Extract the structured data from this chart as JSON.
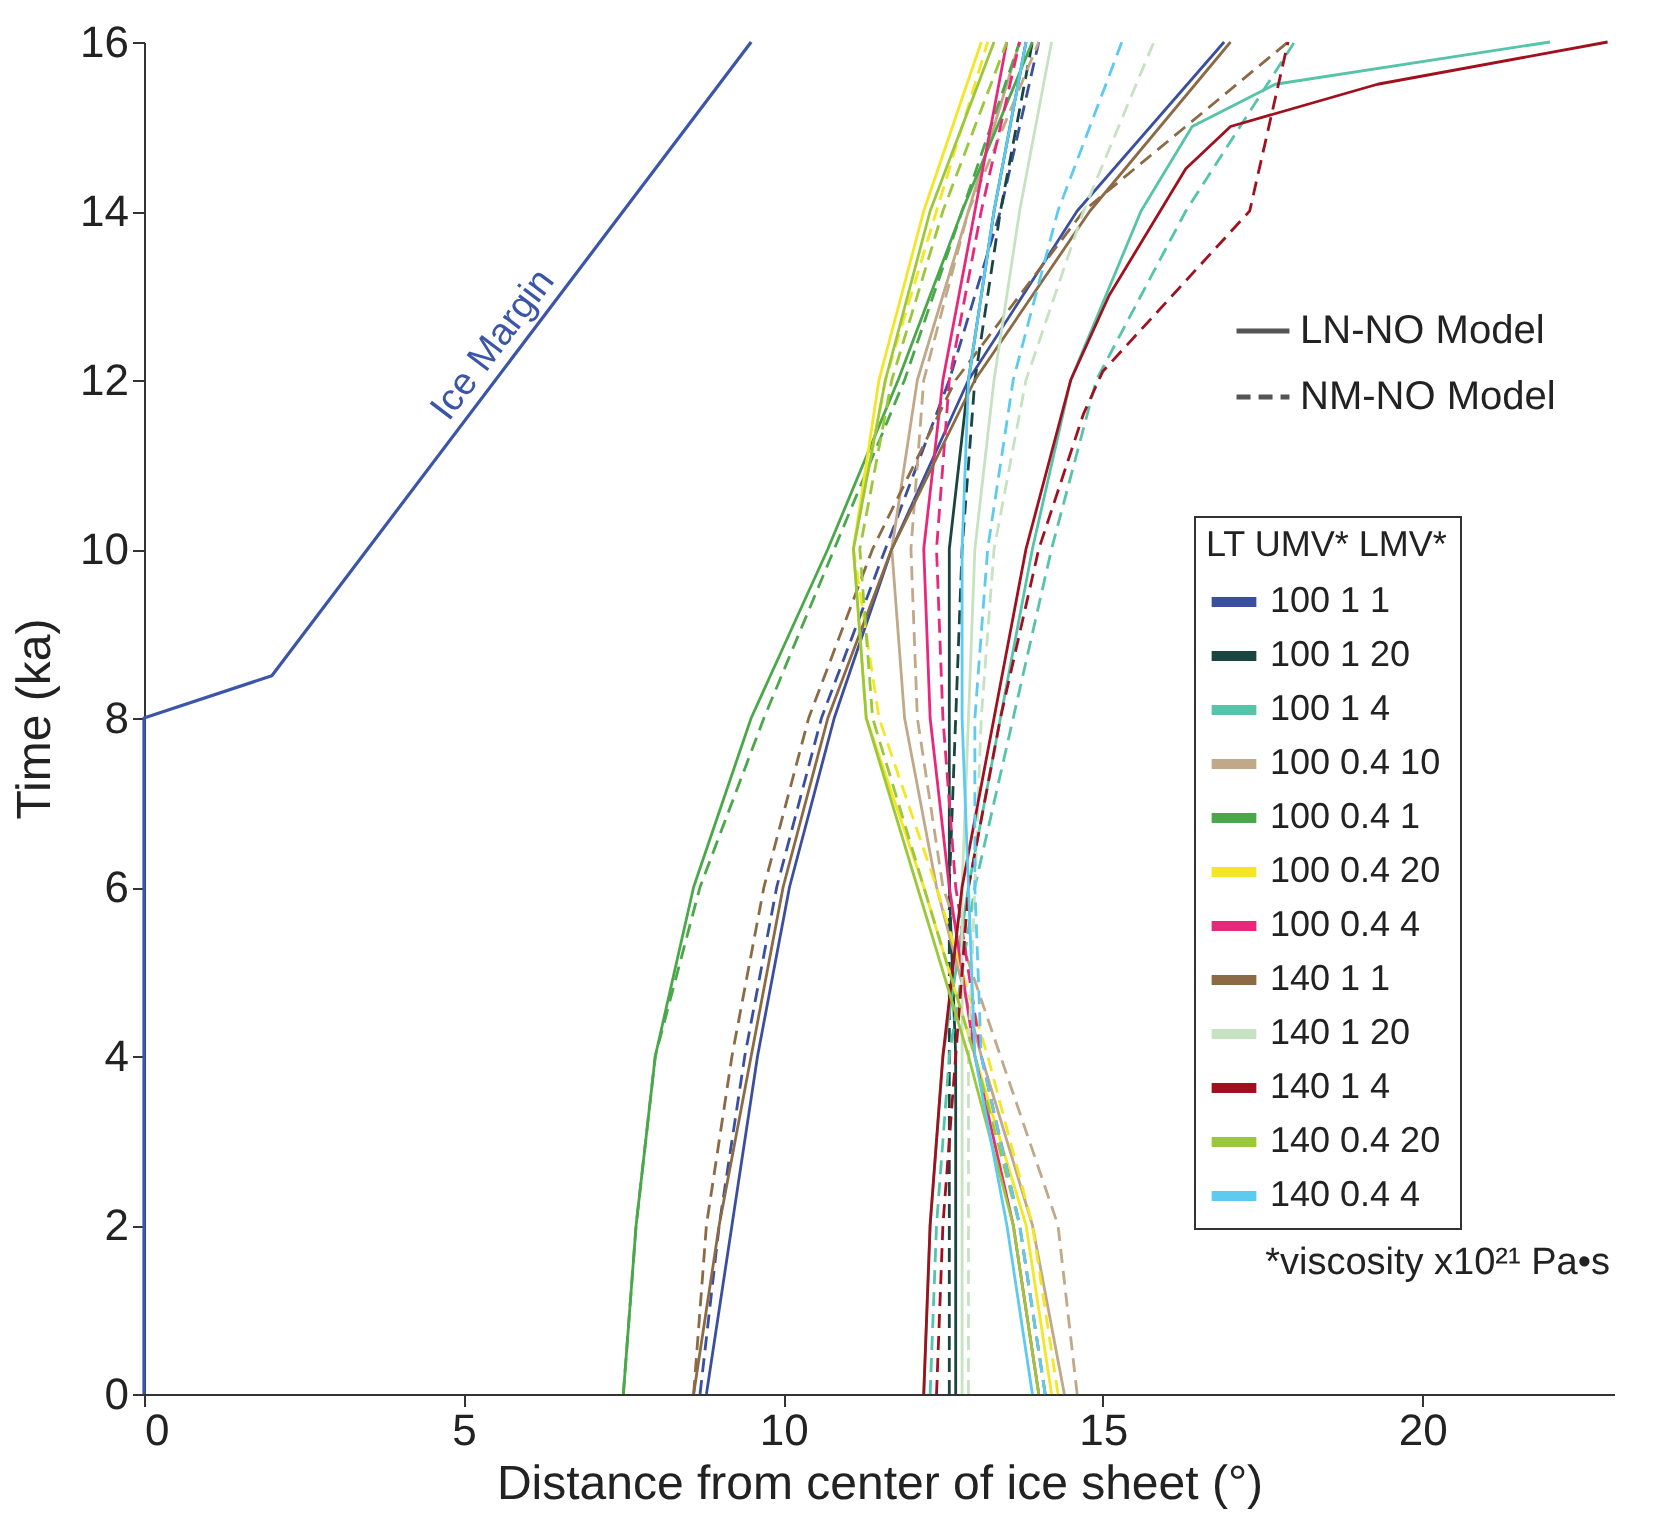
{
  "chart_data": {
    "type": "line",
    "xlabel": "Distance from center of ice sheet (°)",
    "ylabel": "Time (ka)",
    "legend_title": "LT UMV* LMV*",
    "xlim": [
      0,
      23
    ],
    "ylim": [
      0,
      16
    ],
    "xticks": [
      0,
      5,
      10,
      15,
      20
    ],
    "yticks": [
      0,
      2,
      4,
      6,
      8,
      10,
      12,
      14,
      16
    ],
    "grid": false,
    "legend": "right",
    "marker": "none",
    "annotations": [
      "LN-NO Model",
      "NM-NO Model",
      "*viscosity x10²¹ Pa•s"
    ],
    "series": [
      {
        "name": "Ice Margin",
        "color": "#3b55a8",
        "line_style": "solid",
        "x": [
          0,
          0,
          2,
          9.5
        ],
        "values": [
          0,
          8,
          8.5,
          16
        ]
      },
      {
        "name": "100 1 1",
        "color": "#3b4fa0",
        "line_style": "solid",
        "x": [
          8.8,
          9.2,
          9.6,
          10.1,
          10.8,
          11.7,
          12.9,
          14.6,
          16.9
        ],
        "values": [
          0,
          2,
          4,
          6,
          8,
          10,
          12,
          14,
          16
        ]
      },
      {
        "color": "#3b4fa0",
        "line_style": "dashed",
        "x": [
          8.7,
          9.0,
          9.4,
          9.9,
          10.6,
          11.6,
          12.6,
          13.4,
          14.0
        ],
        "values": [
          0,
          2,
          4,
          6,
          8,
          10,
          12,
          14,
          16
        ]
      },
      {
        "name": "100 1 20",
        "color": "#1a4540",
        "line_style": "solid",
        "x": [
          12.7,
          12.7,
          12.7,
          12.6,
          12.6,
          12.6,
          12.9,
          13.3,
          13.8
        ],
        "values": [
          0,
          2,
          4,
          6,
          8,
          10,
          12,
          14,
          16
        ]
      },
      {
        "color": "#1a4540",
        "line_style": "dashed",
        "x": [
          12.6,
          12.6,
          12.6,
          12.6,
          12.7,
          12.8,
          13.0,
          13.4,
          13.9
        ],
        "values": [
          0,
          2,
          4,
          6,
          8,
          10,
          12,
          14,
          16
        ]
      },
      {
        "name": "100 1 4",
        "color": "#55c4a8",
        "line_style": "solid",
        "x": [
          12.2,
          12.3,
          12.5,
          12.9,
          13.4,
          13.9,
          14.5,
          15.6,
          16.4,
          17.7,
          22.0
        ],
        "values": [
          0,
          2,
          4,
          6,
          8,
          10,
          12,
          14,
          15,
          15.5,
          16
        ]
      },
      {
        "color": "#55c4a8",
        "line_style": "dashed",
        "x": [
          12.3,
          12.4,
          12.6,
          13.0,
          13.6,
          14.2,
          14.9,
          16.3,
          18.0
        ],
        "values": [
          0,
          2,
          4,
          6,
          8,
          10,
          12,
          14,
          16
        ]
      },
      {
        "name": "100 0.4 10",
        "color": "#c0a888",
        "line_style": "solid",
        "x": [
          14.4,
          13.9,
          13.1,
          12.4,
          11.9,
          11.7,
          12.1,
          12.9,
          13.7
        ],
        "values": [
          0,
          2,
          4,
          6,
          8,
          10,
          12,
          14,
          16
        ]
      },
      {
        "color": "#c0a888",
        "line_style": "dashed",
        "x": [
          14.6,
          14.3,
          13.4,
          12.5,
          12.1,
          12.0,
          12.2,
          12.9,
          14.0
        ],
        "values": [
          0,
          2,
          4,
          6,
          8,
          10,
          12,
          14,
          16
        ]
      },
      {
        "name": "100 0.4 1",
        "color": "#4aa84a",
        "line_style": "solid",
        "x": [
          7.5,
          7.7,
          8.0,
          8.6,
          9.5,
          10.7,
          11.8,
          12.8,
          13.9
        ],
        "values": [
          0,
          2,
          4,
          6,
          8,
          10,
          12,
          14,
          16
        ]
      },
      {
        "color": "#4aa84a",
        "line_style": "dashed",
        "x": [
          7.5,
          7.7,
          8.0,
          8.7,
          9.7,
          10.8,
          11.9,
          12.8,
          13.7
        ],
        "values": [
          0,
          2,
          4,
          6,
          8,
          10,
          12,
          14,
          16
        ]
      },
      {
        "name": "100 0.4 20",
        "color": "#f5e625",
        "line_style": "solid",
        "x": [
          14.2,
          13.8,
          13.0,
          12.2,
          11.3,
          11.1,
          11.5,
          12.2,
          13.1
        ],
        "values": [
          0,
          2,
          4,
          6,
          8,
          10,
          12,
          14,
          16
        ]
      },
      {
        "color": "#f5e625",
        "line_style": "dashed",
        "x": [
          14.3,
          13.9,
          13.2,
          12.4,
          11.5,
          11.1,
          11.6,
          12.4,
          13.2
        ],
        "values": [
          0,
          2,
          4,
          6,
          8,
          10,
          12,
          14,
          16
        ]
      },
      {
        "name": "100 0.4 4",
        "color": "#e8287a",
        "line_style": "solid",
        "x": [
          14.0,
          13.6,
          13.0,
          12.6,
          12.3,
          12.2,
          12.5,
          13.0,
          13.5
        ],
        "values": [
          0,
          2,
          4,
          6,
          8,
          10,
          12,
          14,
          16
        ]
      },
      {
        "color": "#e8287a",
        "line_style": "dashed",
        "x": [
          14.1,
          13.7,
          13.1,
          12.7,
          12.5,
          12.4,
          12.6,
          13.1,
          13.7
        ],
        "values": [
          0,
          2,
          4,
          6,
          8,
          10,
          12,
          14,
          16
        ]
      },
      {
        "name": "140 1 1",
        "color": "#8b6a45",
        "line_style": "solid",
        "x": [
          8.6,
          9.0,
          9.5,
          10.0,
          10.7,
          11.7,
          13.0,
          14.8,
          17.0
        ],
        "values": [
          0,
          2,
          4,
          6,
          8,
          10,
          12,
          14,
          16
        ]
      },
      {
        "color": "#8b6a45",
        "line_style": "dashed",
        "x": [
          8.6,
          8.8,
          9.2,
          9.7,
          10.4,
          11.4,
          12.7,
          14.7,
          17.9
        ],
        "values": [
          0,
          2,
          4,
          6,
          8,
          10,
          12,
          14,
          16
        ]
      },
      {
        "name": "140 1 20",
        "color": "#c5e3c0",
        "line_style": "solid",
        "x": [
          12.8,
          12.8,
          12.8,
          12.8,
          12.9,
          13.0,
          13.3,
          13.7,
          14.2
        ],
        "values": [
          0,
          2,
          4,
          6,
          8,
          10,
          12,
          14,
          16
        ]
      },
      {
        "color": "#c5e3c0",
        "line_style": "dashed",
        "x": [
          12.9,
          12.9,
          12.9,
          13.0,
          13.1,
          13.3,
          13.8,
          14.7,
          15.8
        ],
        "values": [
          0,
          2,
          4,
          6,
          8,
          10,
          12,
          14,
          16
        ]
      },
      {
        "name": "140 1 4",
        "color": "#a0101e",
        "line_style": "solid",
        "x": [
          12.2,
          12.3,
          12.5,
          12.8,
          13.3,
          13.8,
          14.5,
          15.1,
          15.9,
          16.3,
          17.0,
          19.3,
          22.9
        ],
        "values": [
          0,
          2,
          4,
          6,
          8,
          10,
          12,
          13,
          14,
          14.5,
          15,
          15.5,
          16
        ]
      },
      {
        "color": "#a0101e",
        "line_style": "dashed",
        "x": [
          12.4,
          12.5,
          12.7,
          12.9,
          13.4,
          14.0,
          14.7,
          15.0,
          17.3,
          17.9
        ],
        "values": [
          0,
          2,
          4,
          6,
          8,
          10,
          11.6,
          12.1,
          14,
          16
        ]
      },
      {
        "name": "140 0.4 20",
        "color": "#9ac83a",
        "line_style": "solid",
        "x": [
          14.0,
          13.6,
          12.9,
          12.1,
          11.3,
          11.1,
          11.6,
          12.3,
          13.3
        ],
        "values": [
          0,
          2,
          4,
          6,
          8,
          10,
          12,
          14,
          16
        ]
      },
      {
        "color": "#9ac83a",
        "line_style": "dashed",
        "x": [
          14.1,
          13.7,
          13.0,
          12.2,
          11.4,
          11.2,
          11.7,
          12.5,
          13.5
        ],
        "values": [
          0,
          2,
          4,
          6,
          8,
          10,
          12,
          14,
          16
        ]
      },
      {
        "name": "140 0.4 4",
        "color": "#5ccbef",
        "line_style": "solid",
        "x": [
          13.9,
          13.5,
          13.0,
          12.9,
          12.8,
          12.8,
          12.9,
          13.3,
          13.8
        ],
        "values": [
          0,
          2,
          4,
          6,
          8,
          10,
          12,
          14,
          16
        ]
      },
      {
        "color": "#5ccbef",
        "line_style": "dashed",
        "x": [
          14.1,
          13.7,
          13.1,
          13.0,
          13.0,
          13.2,
          13.6,
          14.3,
          15.3
        ],
        "values": [
          0,
          2,
          4,
          6,
          8,
          10,
          12,
          14,
          16
        ]
      }
    ]
  }
}
